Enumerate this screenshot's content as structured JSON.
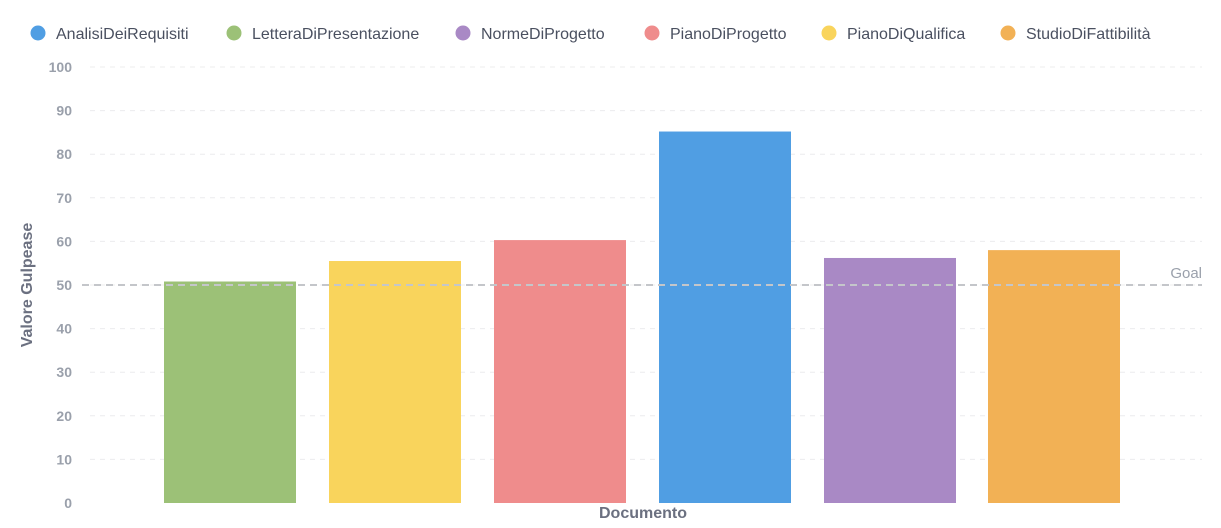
{
  "chart_data": {
    "type": "bar",
    "xlabel": "Documento",
    "ylabel": "Valore Gulpease",
    "ylim": [
      0,
      100
    ],
    "yticks": [
      0,
      10,
      20,
      30,
      40,
      50,
      60,
      70,
      80,
      90,
      100
    ],
    "grid": "horizontal-dashed",
    "legend": "top",
    "goal": {
      "label": "Goal",
      "value": 50,
      "color": "#c4c6ca"
    },
    "series": [
      {
        "name": "AnalisiDeiRequisiti",
        "color": "#509ee3",
        "value": 85.2
      },
      {
        "name": "LetteraDiPresentazione",
        "color": "#9cc177",
        "value": 50.8
      },
      {
        "name": "NormeDiProgetto",
        "color": "#a989c5",
        "value": 56.2
      },
      {
        "name": "PianoDiProgetto",
        "color": "#ef8c8c",
        "value": 60.3
      },
      {
        "name": "PianoDiQualifica",
        "color": "#f9d45c",
        "value": 55.5
      },
      {
        "name": "StudioDiFattibilità",
        "color": "#f2b155",
        "value": 58.0
      }
    ],
    "bar_order": [
      "LetteraDiPresentazione",
      "PianoDiQualifica",
      "PianoDiProgetto",
      "AnalisiDeiRequisiti",
      "NormeDiProgetto",
      "StudioDiFattibilità"
    ]
  }
}
